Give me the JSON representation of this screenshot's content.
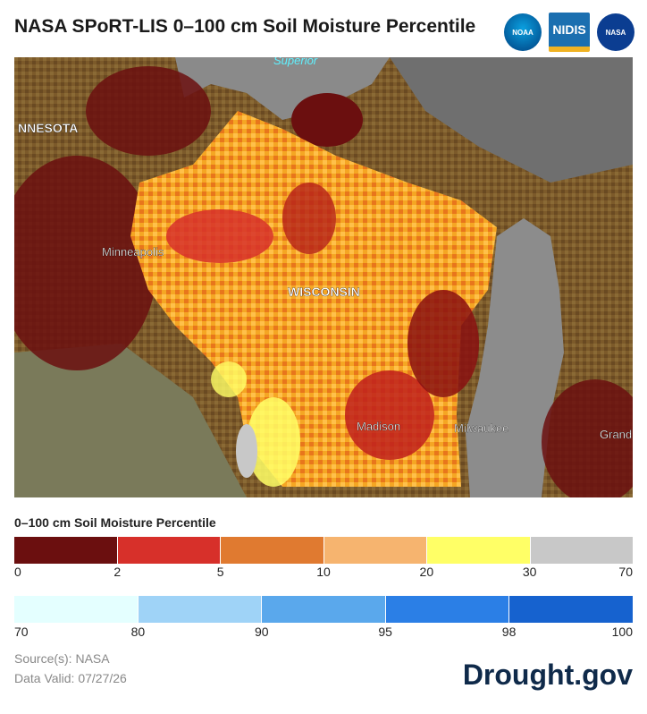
{
  "title": "NASA SPoRT-LIS 0–100 cm Soil Moisture Percentile",
  "logos": {
    "noaa": "NOAA",
    "nidis": "NIDIS",
    "nasa": "NASA"
  },
  "map": {
    "labels": {
      "lake_superior": "Superior",
      "minnesota": "NNESOTA",
      "minneapolis": "Minneapolis",
      "wisconsin": "WISCONSIN",
      "madison": "Madison",
      "milwaukee": "Milwaukee",
      "grand": "Grand"
    }
  },
  "legend": {
    "title": "0–100 cm Soil Moisture Percentile",
    "dry": {
      "colors": [
        "#6b0f0f",
        "#d7302a",
        "#e07a30",
        "#f6b46f",
        "#ffff66",
        "#c8c8c8"
      ],
      "ticks": [
        "0",
        "2",
        "5",
        "10",
        "20",
        "30",
        "70"
      ]
    },
    "wet": {
      "colors": [
        "#e4ffff",
        "#9fd3f7",
        "#5aa8ec",
        "#2b7fe6",
        "#1662cf"
      ],
      "ticks": [
        "70",
        "80",
        "90",
        "95",
        "98",
        "100"
      ]
    }
  },
  "source": "Source(s): NASA",
  "valid": "Data Valid: 07/27/26",
  "brand": "Drought.gov"
}
